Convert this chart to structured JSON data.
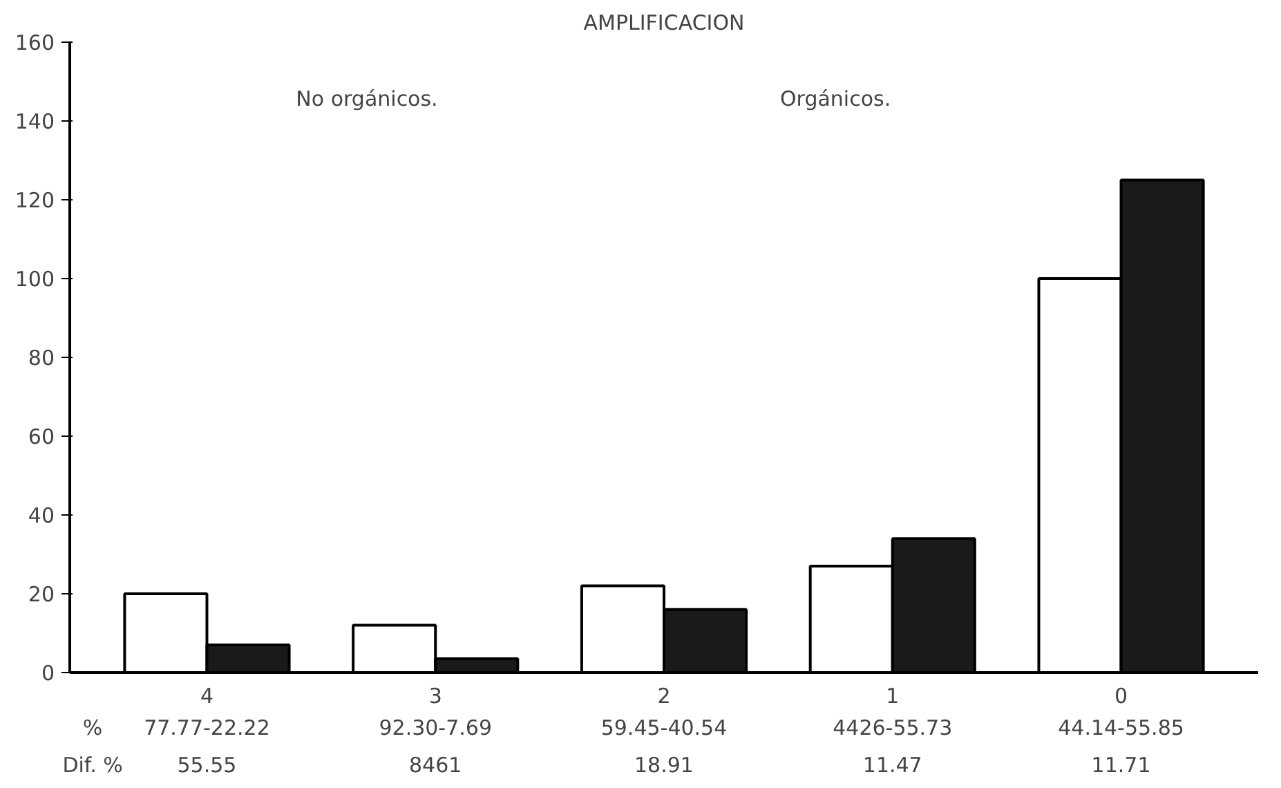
{
  "chart_data": {
    "type": "bar",
    "title": "AMPLIFICACION",
    "categories": [
      "4",
      "3",
      "2",
      "1",
      "0"
    ],
    "series": [
      {
        "color": "#ffffff",
        "values": [
          20,
          12,
          22,
          27,
          100
        ]
      },
      {
        "color": "#1a1a1a",
        "values": [
          7,
          3.5,
          16,
          34,
          125
        ]
      }
    ],
    "ylim": [
      0,
      160
    ],
    "yticks": [
      0,
      20,
      40,
      60,
      80,
      100,
      120,
      140,
      160
    ],
    "grid": false,
    "annotations": [
      "No orgánicos.",
      "Orgánicos.",
      "%",
      "Dif. %",
      "77.77-22.22",
      "92.30-7.69",
      "59.45-40.54",
      "4426-55.73",
      "44.14-55.85",
      "55.55",
      "8461",
      "18.91",
      "11.47",
      "11.71"
    ]
  }
}
